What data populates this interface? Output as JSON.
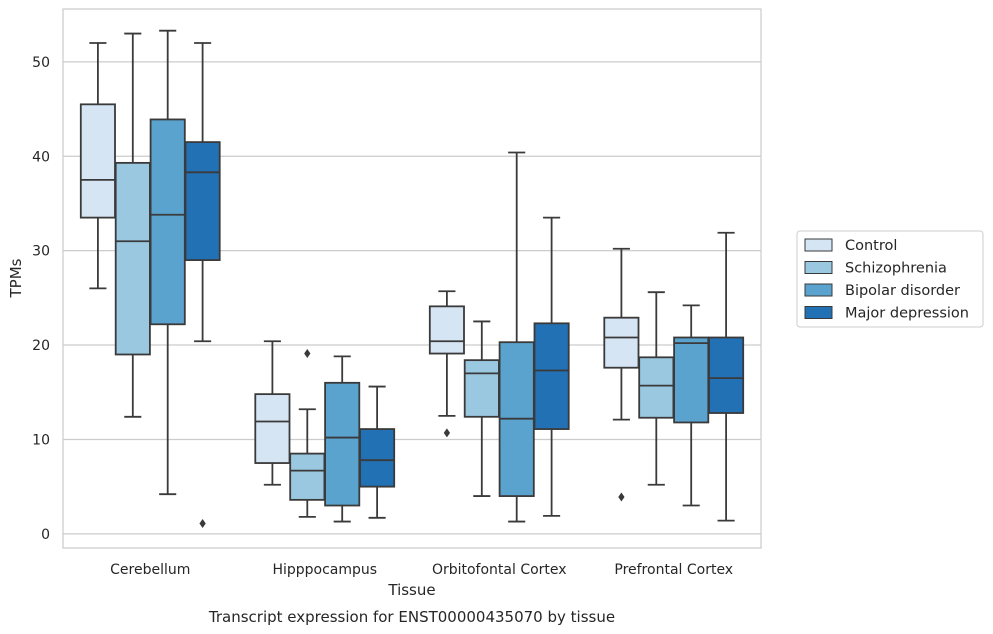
{
  "chart_data": {
    "type": "box",
    "title": "",
    "caption": "Transcript expression for ENST00000435070 by tissue",
    "xlabel": "Tissue",
    "ylabel": "TPMs",
    "ylim": [
      -1.5,
      55.6
    ],
    "yticks": [
      0,
      10,
      20,
      30,
      40,
      50
    ],
    "grid": "horizontal",
    "legend_position": "right",
    "categories": [
      "Cerebellum",
      "Hipppocampus",
      "Orbitofontal Cortex",
      "Prefrontal Cortex"
    ],
    "series": [
      {
        "name": "Control",
        "color": "#d6e5f4",
        "boxes": [
          {
            "whislo": 26.0,
            "q1": 33.5,
            "med": 37.5,
            "q3": 45.5,
            "whishi": 52.0,
            "fliers": []
          },
          {
            "whislo": 5.2,
            "q1": 7.5,
            "med": 11.9,
            "q3": 14.8,
            "whishi": 20.4,
            "fliers": []
          },
          {
            "whislo": 12.5,
            "q1": 19.1,
            "med": 20.4,
            "q3": 24.1,
            "whishi": 25.7,
            "fliers": [
              10.7
            ]
          },
          {
            "whislo": 12.1,
            "q1": 17.6,
            "med": 20.8,
            "q3": 22.9,
            "whishi": 30.2,
            "fliers": [
              3.9
            ]
          }
        ]
      },
      {
        "name": "Schizophrenia",
        "color": "#9ac8e0",
        "boxes": [
          {
            "whislo": 12.4,
            "q1": 19.0,
            "med": 31.0,
            "q3": 39.3,
            "whishi": 53.0,
            "fliers": []
          },
          {
            "whislo": 1.8,
            "q1": 3.6,
            "med": 6.7,
            "q3": 8.5,
            "whishi": 13.2,
            "fliers": [
              19.1
            ]
          },
          {
            "whislo": 4.0,
            "q1": 12.4,
            "med": 17.0,
            "q3": 18.4,
            "whishi": 22.5,
            "fliers": []
          },
          {
            "whislo": 5.2,
            "q1": 12.3,
            "med": 15.7,
            "q3": 18.7,
            "whishi": 25.6,
            "fliers": []
          }
        ]
      },
      {
        "name": "Bipolar disorder",
        "color": "#5ba3cf",
        "boxes": [
          {
            "whislo": 4.2,
            "q1": 22.2,
            "med": 33.8,
            "q3": 43.9,
            "whishi": 53.3,
            "fliers": []
          },
          {
            "whislo": 1.3,
            "q1": 3.0,
            "med": 10.2,
            "q3": 16.0,
            "whishi": 18.8,
            "fliers": []
          },
          {
            "whislo": 1.3,
            "q1": 4.0,
            "med": 12.2,
            "q3": 20.3,
            "whishi": 40.4,
            "fliers": []
          },
          {
            "whislo": 3.0,
            "q1": 11.8,
            "med": 20.2,
            "q3": 20.8,
            "whishi": 24.2,
            "fliers": []
          }
        ]
      },
      {
        "name": "Major depression",
        "color": "#2271b5",
        "boxes": [
          {
            "whislo": 20.4,
            "q1": 29.0,
            "med": 38.3,
            "q3": 41.5,
            "whishi": 52.0,
            "fliers": [
              1.1
            ]
          },
          {
            "whislo": 1.7,
            "q1": 5.0,
            "med": 7.8,
            "q3": 11.1,
            "whishi": 15.6,
            "fliers": []
          },
          {
            "whislo": 1.9,
            "q1": 11.1,
            "med": 17.3,
            "q3": 22.3,
            "whishi": 33.5,
            "fliers": []
          },
          {
            "whislo": 1.4,
            "q1": 12.8,
            "med": 16.5,
            "q3": 20.8,
            "whishi": 31.9,
            "fliers": []
          }
        ]
      }
    ]
  }
}
